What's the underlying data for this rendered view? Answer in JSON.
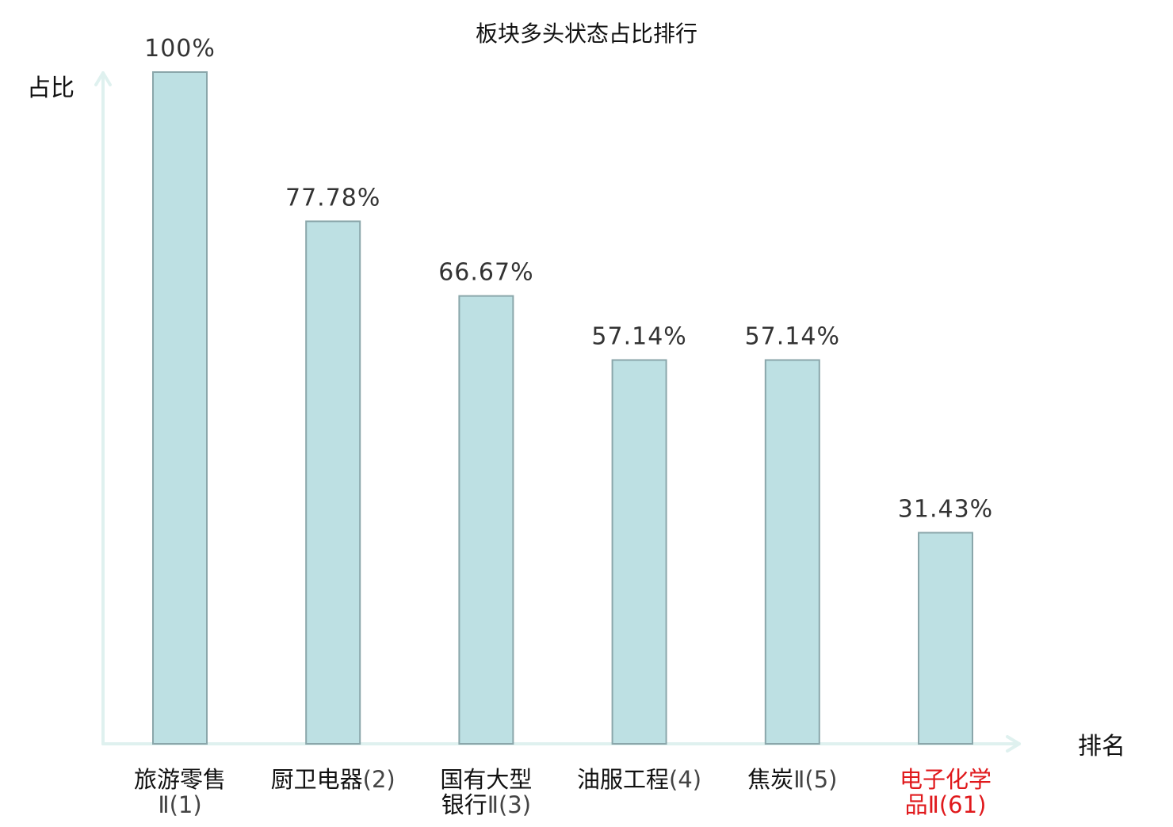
{
  "chart_data": {
    "type": "bar",
    "title": "板块多头状态占比排行",
    "ylabel": "占比",
    "xlabel": "排名",
    "ylim": [
      0,
      100
    ],
    "grid": false,
    "categories": [
      {
        "lines": [
          "旅游零售",
          "Ⅱ(1)"
        ],
        "highlight": false
      },
      {
        "lines": [
          "厨卫电器(2)"
        ],
        "highlight": false
      },
      {
        "lines": [
          "国有大型",
          "银行Ⅱ(3)"
        ],
        "highlight": false
      },
      {
        "lines": [
          "油服工程(4)"
        ],
        "highlight": false
      },
      {
        "lines": [
          "焦炭Ⅱ(5)"
        ],
        "highlight": false
      },
      {
        "lines": [
          "电子化学",
          "品Ⅱ(61)"
        ],
        "highlight": true
      }
    ],
    "values": [
      100,
      77.78,
      66.67,
      57.14,
      57.14,
      31.43
    ],
    "value_labels": [
      "100%",
      "77.78%",
      "66.67%",
      "57.14%",
      "57.14%",
      "31.43%"
    ]
  },
  "colors": {
    "bar_fill": "#bde0e3",
    "bar_stroke": "#8aa6aa",
    "axis": "#dff1ef",
    "text": "#111111",
    "rank_text": "#444444",
    "highlight": "#e0191c"
  }
}
